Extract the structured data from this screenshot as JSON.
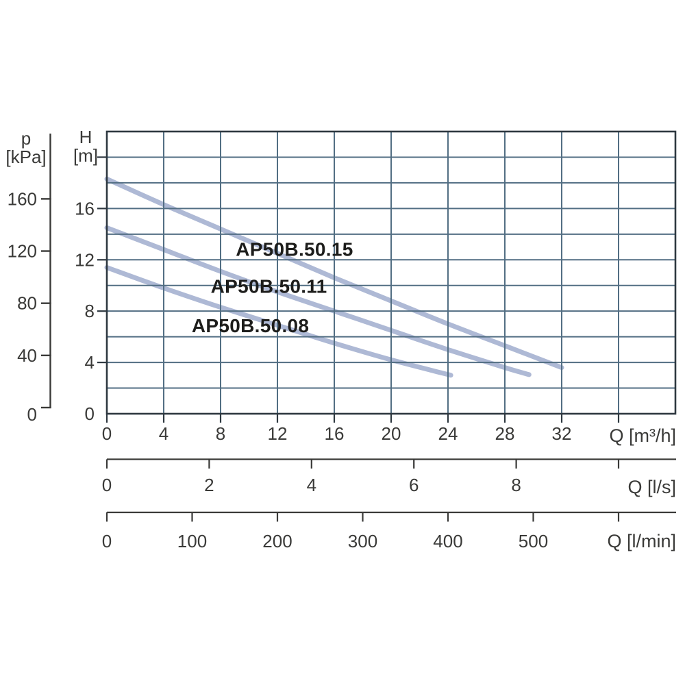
{
  "colors": {
    "background": "#ffffff",
    "grid": "#526e83",
    "frame": "#2e3840",
    "axis": "#3a3a38",
    "curve": "#aeb9d5",
    "tick_text": "#3a3a38",
    "curve_label_text": "#1d1d1b"
  },
  "pressure_axis_title": {
    "line1": "p",
    "line2": "[kPa]"
  },
  "head_axis_title": {
    "line1": "H",
    "line2": "[m]"
  },
  "axis_units": {
    "m3h": "Q [m³/h]",
    "ls": "Q [l/s]",
    "lmin": "Q [l/min]"
  },
  "curve_labels": [
    "AP50B.50.15",
    "AP50B.50.11",
    "AP50B.50.08"
  ],
  "chart_data": {
    "type": "line",
    "title": "",
    "xlabel": "Q [m³/h]",
    "ylabel": "H [m]",
    "secondary_y_axis_label": "p [kPa]",
    "secondary_x_axis_labels": [
      "Q [l/s]",
      "Q [l/min]"
    ],
    "xlim": [
      0,
      40
    ],
    "ylim": [
      0,
      22
    ],
    "grid": true,
    "x_gridline_step": 4,
    "y_gridline_step": 2,
    "x_ticks_m3h": {
      "values": [
        0,
        4,
        8,
        12,
        16,
        20,
        24,
        28,
        32
      ],
      "unlabeled": [
        36
      ]
    },
    "y_ticks_m": {
      "values": [
        0,
        4,
        8,
        12,
        16
      ],
      "tick_marks": [
        4,
        8,
        12,
        16,
        20
      ]
    },
    "p_ticks_kPa": [
      0,
      40,
      80,
      120,
      160
    ],
    "ls_ticks": {
      "values": [
        0,
        2,
        4,
        6,
        8
      ],
      "unlabeled": [
        10
      ]
    },
    "lmin_ticks": {
      "values": [
        0,
        100,
        200,
        300,
        400,
        500
      ],
      "unlabeled": [
        600
      ]
    },
    "series": [
      {
        "name": "AP50B.50.15",
        "points_q_m3h_h_m": [
          [
            0,
            18.3
          ],
          [
            4,
            16.3
          ],
          [
            8,
            14.4
          ],
          [
            12,
            12.5
          ],
          [
            16,
            10.6
          ],
          [
            20,
            8.8
          ],
          [
            24,
            7.0
          ],
          [
            28,
            5.3
          ],
          [
            32,
            3.6
          ]
        ],
        "label_anchor_q_h": [
          13.2,
          12.85
        ]
      },
      {
        "name": "AP50B.50.11",
        "points_q_m3h_h_m": [
          [
            0,
            14.5
          ],
          [
            4,
            12.8
          ],
          [
            8,
            11.1
          ],
          [
            12,
            9.5
          ],
          [
            16,
            8.0
          ],
          [
            20,
            6.5
          ],
          [
            24,
            5.0
          ],
          [
            28,
            3.6
          ],
          [
            29.7,
            3.05
          ]
        ],
        "label_anchor_q_h": [
          11.4,
          9.95
        ]
      },
      {
        "name": "AP50B.50.08",
        "points_q_m3h_h_m": [
          [
            0,
            11.4
          ],
          [
            4,
            9.8
          ],
          [
            8,
            8.3
          ],
          [
            12,
            6.9
          ],
          [
            16,
            5.5
          ],
          [
            20,
            4.2
          ],
          [
            24.2,
            3.0
          ]
        ],
        "label_anchor_q_h": [
          10.1,
          6.9
        ]
      }
    ]
  }
}
